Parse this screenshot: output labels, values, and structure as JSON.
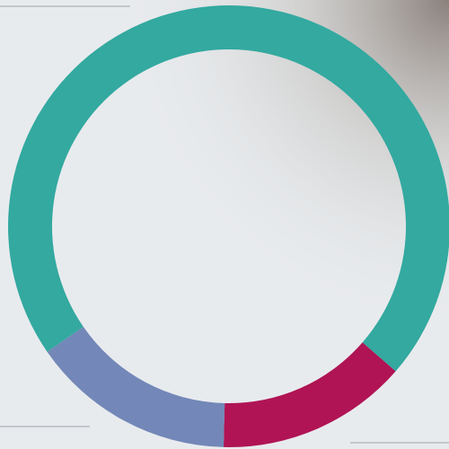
{
  "chart_data": {
    "type": "donut",
    "categories": [
      null,
      null,
      null
    ],
    "values": [
      14,
      15,
      71
    ],
    "colors": [
      "#b01454",
      "#7388b8",
      "#33a9a0"
    ]
  }
}
